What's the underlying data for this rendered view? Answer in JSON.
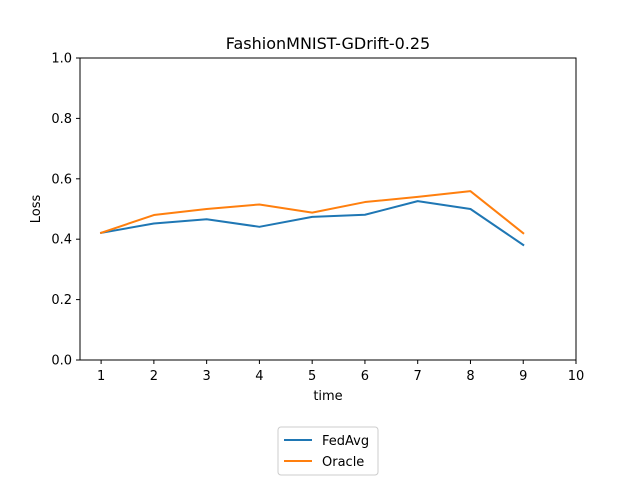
{
  "chart_data": {
    "type": "line",
    "title": "FashionMNIST-GDrift-0.25",
    "xlabel": "time",
    "ylabel": "Loss",
    "xlim": [
      0.6,
      10
    ],
    "ylim": [
      0.0,
      1.0
    ],
    "xticks": [
      1,
      2,
      3,
      4,
      5,
      6,
      7,
      8,
      9,
      10
    ],
    "yticks": [
      "0.0",
      "0.2",
      "0.4",
      "0.6",
      "0.8",
      "1.0"
    ],
    "grid": false,
    "legend_position": "bottom-center",
    "x": [
      1,
      2,
      3,
      4,
      5,
      6,
      7,
      8,
      9
    ],
    "series": [
      {
        "name": "FedAvg",
        "color": "#1f77b4",
        "values": [
          0.421,
          0.452,
          0.466,
          0.441,
          0.474,
          0.481,
          0.526,
          0.5,
          0.381
        ]
      },
      {
        "name": "Oracle",
        "color": "#ff7f0e",
        "values": [
          0.421,
          0.48,
          0.5,
          0.515,
          0.488,
          0.523,
          0.54,
          0.559,
          0.42
        ]
      }
    ]
  }
}
